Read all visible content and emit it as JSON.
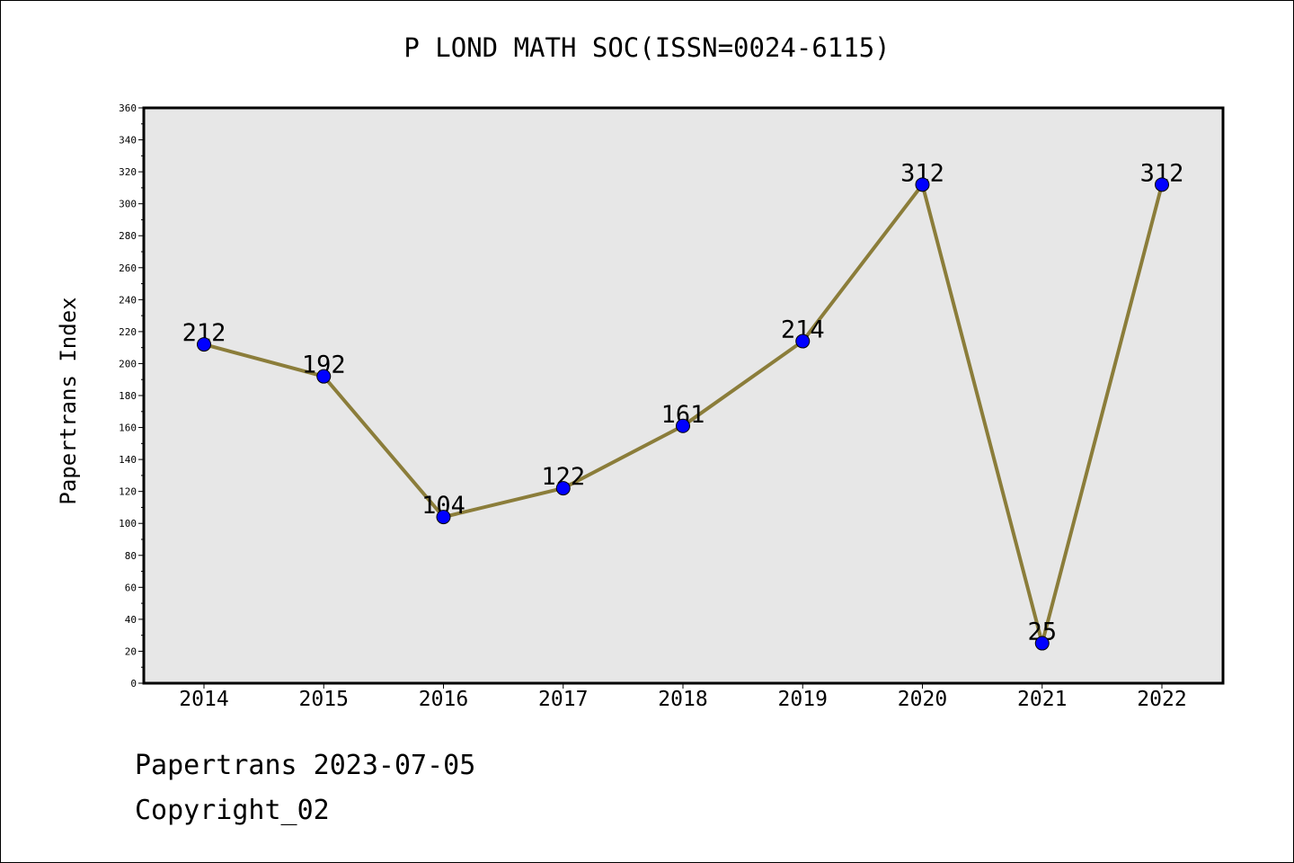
{
  "colors": {
    "plot_background": "#e7e7e7",
    "line": "#8b7d3a",
    "marker": "#0000ff",
    "axis": "#000000"
  },
  "footer": {
    "source_date": "Papertrans 2023-07-05",
    "copyright": "Copyright_02"
  },
  "chart_data": {
    "type": "line",
    "title": "P LOND MATH SOC(ISSN=0024-6115)",
    "xlabel": "",
    "ylabel": "Papertrans Index",
    "categories": [
      "2014",
      "2015",
      "2016",
      "2017",
      "2018",
      "2019",
      "2020",
      "2021",
      "2022"
    ],
    "values": [
      212,
      192,
      104,
      122,
      161,
      214,
      312,
      25,
      312
    ],
    "data_labels": [
      "212",
      "192",
      "104",
      "122",
      "161",
      "214",
      "312",
      "25",
      "312"
    ],
    "ylim": [
      0,
      360
    ],
    "yticks": [
      "0",
      "20",
      "40",
      "60",
      "80",
      "100",
      "120",
      "140",
      "160",
      "180",
      "200",
      "220",
      "240",
      "260",
      "280",
      "300",
      "320",
      "340",
      "360"
    ],
    "grid": false,
    "legend": "none"
  }
}
